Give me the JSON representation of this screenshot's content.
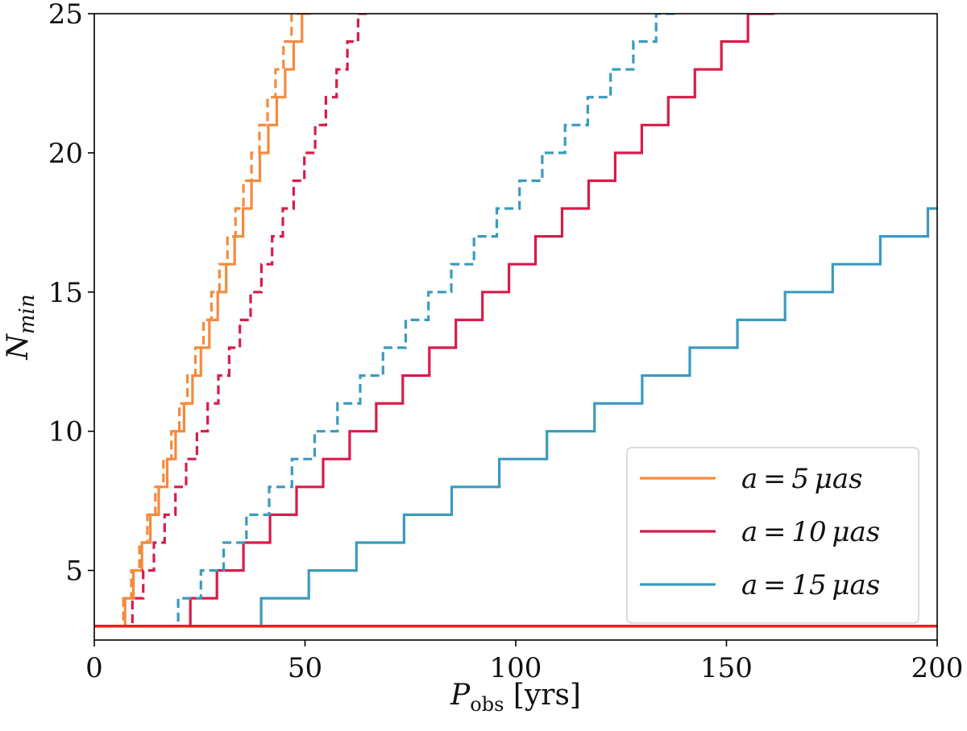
{
  "chart_data": {
    "type": "line",
    "xlabel": "P_obs [yrs]",
    "xlabel_main": "P",
    "xlabel_sub": "obs",
    "xlabel_unit": "[yrs]",
    "ylabel": "N_min",
    "ylabel_main": "N",
    "ylabel_sub": "min",
    "xlim": [
      0,
      200
    ],
    "ylim": [
      2.5,
      25
    ],
    "xticks": [
      0,
      50,
      100,
      150,
      200
    ],
    "yticks": [
      5,
      10,
      15,
      20,
      25
    ],
    "grid": false,
    "legend_position": "lower-right",
    "threshold_line": {
      "y": 3,
      "color": "#e8201c"
    },
    "series": [
      {
        "name": "a = 5 μas",
        "label_prefix": "a",
        "label_value": "5",
        "label_unit": "μas",
        "legend_label": "a = 5 μas",
        "color": "#f58a3c",
        "style": "solid",
        "x0": 5.3,
        "step": 2.0,
        "n_start": 3,
        "n_end": 25
      },
      {
        "name": "a = 5 μas (dashed)",
        "legend": false,
        "color": "#f58a3c",
        "style": "dashed",
        "x0": 5.0,
        "step": 1.9,
        "n_start": 3,
        "n_end": 25
      },
      {
        "name": "a = 10 μas",
        "label_prefix": "a",
        "label_value": "10",
        "label_unit": "μas",
        "legend_label": "a = 10 μas",
        "color": "#d81b4a",
        "style": "solid",
        "x0": 16.5,
        "step": 6.3,
        "n_start": 3,
        "n_end": 25
      },
      {
        "name": "a = 10 μas (dashed)",
        "legend": false,
        "color": "#d81b4a",
        "style": "dashed",
        "x0": 6.5,
        "step": 2.55,
        "n_start": 3,
        "n_end": 25
      },
      {
        "name": "a = 15 μas",
        "label_prefix": "a",
        "label_value": "15",
        "label_unit": "μas",
        "legend_label": "a = 15 μas",
        "color": "#3a9abf",
        "style": "solid",
        "x0": 28.3,
        "step": 11.3,
        "n_start": 3,
        "n_end": 19
      },
      {
        "name": "a = 15 μas (dashed)",
        "legend": false,
        "color": "#3a9abf",
        "style": "dashed",
        "x0": 14.5,
        "step": 5.4,
        "n_start": 3,
        "n_end": 25
      }
    ]
  }
}
